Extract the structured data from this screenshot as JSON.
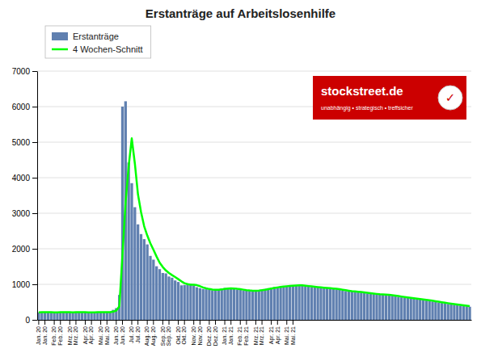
{
  "chart_data": {
    "type": "bar",
    "title": "Erstanträge auf Arbeitslosenhilfe",
    "categories": [
      "Jan. 20",
      null,
      "Jan. 20",
      null,
      null,
      "Feb. 20",
      null,
      "Feb. 20",
      null,
      null,
      "Mrz. 20",
      null,
      "Mrz. 20",
      null,
      null,
      "Apr. 20",
      null,
      "Apr. 20",
      null,
      null,
      "Mai. 20",
      null,
      "Mai. 20",
      null,
      null,
      "Jun. 20",
      null,
      "Jun. 20",
      null,
      null,
      "Jul. 20",
      null,
      "Jul. 20",
      null,
      null,
      "Aug. 20",
      null,
      "Aug. 20",
      null,
      null,
      "Sep. 20",
      null,
      "Sep. 20",
      null,
      null,
      "Okt. 20",
      null,
      "Okt. 20",
      null,
      null,
      "Nov. 20",
      null,
      "Nov. 20",
      null,
      null,
      "Dez. 20",
      null,
      "Dez. 20",
      null,
      null,
      "Jan. 21",
      null,
      "Jan. 21",
      null,
      null,
      "Feb. 21",
      null,
      "Feb. 21",
      null,
      null,
      "Mrz. 21",
      null,
      "Mrz. 21",
      null,
      null,
      "Apr. 21",
      null,
      "Apr. 21",
      null,
      null,
      "Mai. 21",
      null,
      "Mai. 21",
      null,
      null,
      null,
      null,
      null,
      null,
      null,
      null,
      null,
      null,
      null,
      null,
      null,
      null,
      null,
      null,
      null,
      null,
      null,
      null,
      null,
      null,
      null,
      null,
      null,
      null,
      null,
      null,
      null,
      null,
      null,
      null,
      null,
      null,
      null,
      null,
      null,
      null,
      null,
      null,
      null,
      null,
      null,
      null,
      null,
      null,
      null,
      null,
      null,
      null,
      null,
      null,
      null,
      null,
      null,
      null,
      null
    ],
    "series": [
      {
        "name": "Erstanträge",
        "type": "bar",
        "color": "#6080b0",
        "values": [
          211,
          220,
          212,
          215,
          212,
          208,
          215,
          220,
          211,
          212,
          210,
          215,
          218,
          216,
          215,
          208,
          210,
          213,
          220,
          218,
          212,
          210,
          215,
          218,
          282,
          330,
          701,
          6000,
          6150,
          4427,
          3846,
          3170,
          2687,
          2413,
          2271,
          2123,
          1800,
          1694,
          1508,
          1427,
          1319,
          1307,
          1220,
          1186,
          1109,
          1066,
          971,
          981,
          1001,
          1011,
          971,
          918,
          891,
          871,
          861,
          845,
          833,
          847,
          862,
          879,
          898,
          881,
          884,
          871,
          854,
          845,
          829,
          820,
          815,
          819,
          824,
          837,
          858,
          871,
          889,
          904,
          922,
          933,
          941,
          952,
          958,
          965,
          971,
          978,
          968,
          959,
          945,
          935,
          925,
          915,
          908,
          903,
          896,
          889,
          877,
          869,
          858,
          845,
          823,
          810,
          803,
          795,
          787,
          778,
          769,
          758,
          745,
          733,
          725,
          718,
          712,
          708,
          703,
          690,
          677,
          663,
          649,
          635,
          623,
          615,
          605,
          592,
          579,
          568,
          557,
          544,
          532,
          518,
          502,
          488,
          475,
          462,
          450,
          438,
          426,
          415,
          403,
          392,
          382,
          370
        ]
      },
      {
        "name": "4 Wochen-Schnitt",
        "type": "line",
        "color": "#00ff00",
        "values": [
          211,
          215.5,
          214.33333333333334,
          214.5,
          214.75,
          211.75,
          212.5,
          213.75,
          213.5,
          214.5,
          213.25,
          212,
          213.75,
          214.75,
          216,
          214.25,
          212.25,
          211.5,
          212.75,
          215.25,
          215.75,
          215,
          213.75,
          213.75,
          231.25,
          261.25,
          382.75,
          1828.25,
          3295.25,
          4319.5,
          5105.75,
          4398.25,
          3532.5,
          3029,
          2635.25,
          2373.5,
          2151.75,
          1972,
          1781.25,
          1607.25,
          1487,
          1390.25,
          1318.25,
          1258,
          1205.5,
          1145.25,
          1083,
          1031.75,
          1004.75,
          991,
          991,
          975.25,
          947.75,
          912.75,
          885.25,
          867,
          852.5,
          846.5,
          846.75,
          855.25,
          871.5,
          880,
          885.5,
          883.5,
          872.5,
          863.5,
          849.75,
          837,
          827.25,
          820.75,
          819.5,
          823.75,
          834.5,
          847.5,
          863.75,
          880.5,
          896.5,
          912,
          925,
          937,
          946,
          954,
          961.5,
          968,
          970.5,
          969,
          962.5,
          951.75,
          941,
          930,
          920.75,
          912.75,
          905.5,
          899,
          891.25,
          882.75,
          873.25,
          862.25,
          848.75,
          834,
          820.25,
          807.75,
          798.75,
          790.75,
          782.25,
          773,
          762.5,
          751.25,
          740.25,
          730.25,
          722,
          715.75,
          710.25,
          703.25,
          694.5,
          683.25,
          669.75,
          656,
          642.5,
          630.5,
          619.5,
          608.75,
          597.75,
          586,
          574,
          562,
          550.25,
          537.75,
          524,
          510,
          495.75,
          481.75,
          468.75,
          456.25,
          444,
          432.25,
          420.5,
          409,
          398,
          386.75
        ]
      }
    ],
    "ylim": [
      0,
      7000
    ],
    "yticks": [
      0,
      1000,
      2000,
      3000,
      4000,
      5000,
      6000,
      7000
    ],
    "grid": true,
    "legend": "upper left",
    "annotations": [
      {
        "text": "stockstreet.de",
        "color": "#cc0000"
      },
      {
        "text": "unabhängig • strategisch • treffsicher"
      },
      {
        "text": "✓"
      }
    ]
  }
}
